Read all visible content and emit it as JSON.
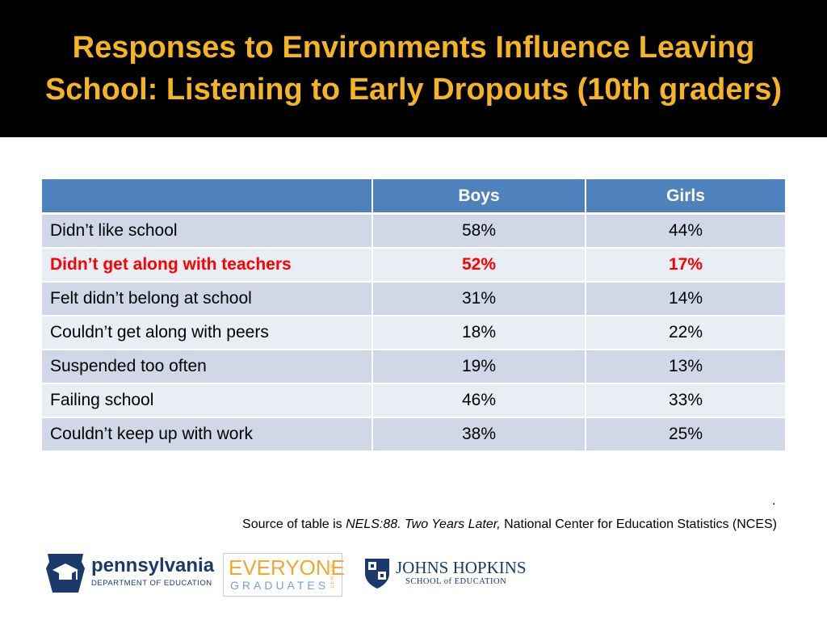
{
  "slide": {
    "title": "Responses to Environments Influence Leaving School: Listening to Early Dropouts (10th graders)"
  },
  "table": {
    "headers": [
      "",
      "Boys",
      "Girls"
    ],
    "rows": [
      {
        "label": "Didn’t like school",
        "boys": "58%",
        "girls": "44%"
      },
      {
        "label": "Didn’t get along with teachers",
        "boys": "52%",
        "girls": "17%"
      },
      {
        "label": "Felt didn’t belong at school",
        "boys": "31%",
        "girls": "14%"
      },
      {
        "label": "Couldn’t get along with peers",
        "boys": "18%",
        "girls": "22%"
      },
      {
        "label": "Suspended too often",
        "boys": "19%",
        "girls": "13%"
      },
      {
        "label": "Failing school",
        "boys": "46%",
        "girls": "33%"
      },
      {
        "label": "Couldn’t keep up with work",
        "boys": "38%",
        "girls": "25%"
      }
    ]
  },
  "footer": {
    "dot": ".",
    "source_prefix": "Source of table is ",
    "source_italic": "NELS:88. Two Years Later,",
    "source_suffix": " National Center for Education Statistics (NCES)"
  },
  "logos": {
    "pa_name": "pennsylvania",
    "pa_sub": "DEPARTMENT OF EDUCATION",
    "eg_top": "EVERYONE",
    "eg_bottom": "GRADUATES",
    "eg_side": "CENTER",
    "jh_name": "JOHNS HOPKINS",
    "jh_sub": "SCHOOL of EDUCATION"
  },
  "colors": {
    "title": "#f5b422",
    "header_bg": "#4f81bd",
    "row_odd": "#d0d8e8",
    "row_even": "#e9edf4",
    "highlight": "#ff0000"
  }
}
